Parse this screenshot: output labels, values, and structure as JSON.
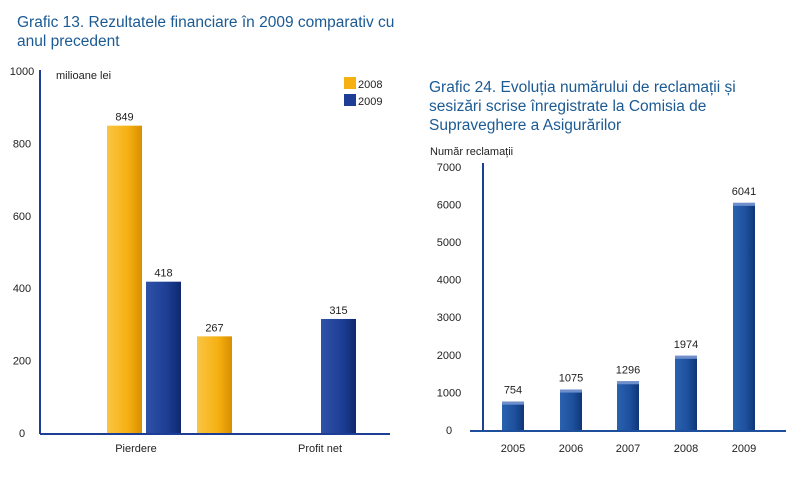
{
  "chart_data": [
    {
      "type": "bar",
      "title": "Grafic 13. Rezultatele financiare în 2009 comparativ cu anul precedent",
      "ylabel": "milioane lei",
      "ylim": [
        0,
        1000
      ],
      "yticks": [
        0,
        200,
        400,
        600,
        800,
        1000
      ],
      "categories": [
        "Pierdere",
        "Profit net"
      ],
      "series": [
        {
          "name": "2008",
          "color": "#f6b012",
          "values": [
            849,
            267
          ]
        },
        {
          "name": "2009",
          "color": "#1d3e94",
          "values": [
            418,
            315
          ]
        }
      ],
      "legend": "top-right",
      "grid": false
    },
    {
      "type": "bar",
      "title": "Grafic 24. Evoluția numărului de reclamații și sesizări scrise înregistrate la Comisia de Supraveghere a Asigurărilor",
      "ylabel": "Număr reclamații",
      "ylim": [
        0,
        7000
      ],
      "yticks": [
        0,
        1000,
        2000,
        3000,
        4000,
        5000,
        6000,
        7000
      ],
      "categories": [
        "2005",
        "2006",
        "2007",
        "2008",
        "2009"
      ],
      "values": [
        754,
        1075,
        1296,
        1974,
        6041
      ],
      "color": "#1d4f9c",
      "grid": false
    }
  ]
}
